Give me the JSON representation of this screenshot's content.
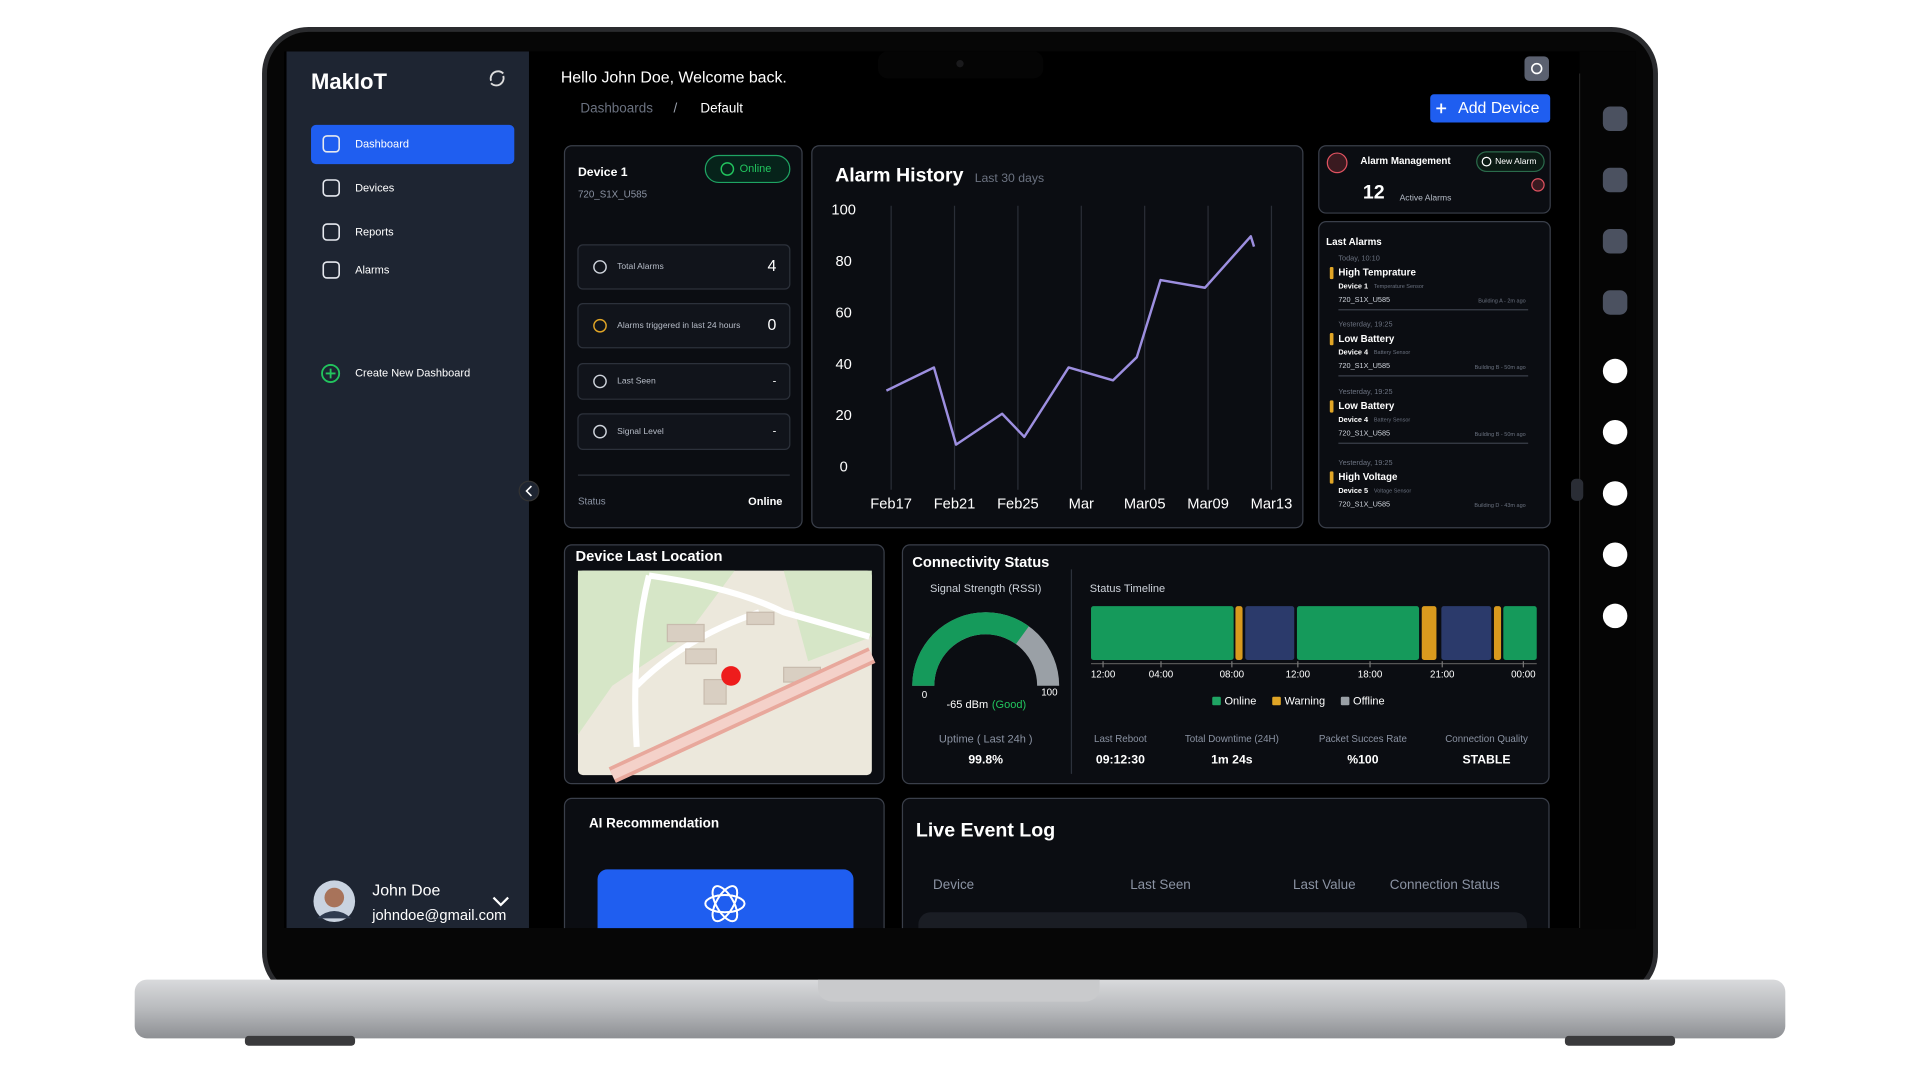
{
  "app": {
    "name": "MakIoT"
  },
  "nav": {
    "items": [
      "Dashboard",
      "Devices",
      "Reports",
      "Alarms"
    ],
    "create": "Create New Dashboard"
  },
  "user": {
    "name": "John Doe",
    "email": "johndoe@gmail.com"
  },
  "header": {
    "greeting": "Hello John Doe, Welcome back.",
    "breadcrumb": [
      "Dashboards",
      "Default"
    ],
    "separator": "/",
    "add_device": "Add Device"
  },
  "device": {
    "name": "Device 1",
    "id": "720_S1X_U585",
    "badge": "Online",
    "metrics": [
      {
        "label": "Total Alarms",
        "value": 4
      },
      {
        "label": "Alarms triggered in last 24 hours",
        "value": 0
      },
      {
        "label": "Last Seen",
        "value": "-"
      },
      {
        "label": "Signal Level",
        "value": "-"
      }
    ],
    "status_label": "Status",
    "status_value": "Online"
  },
  "chart_data": {
    "type": "line",
    "title": "Alarm History",
    "subtitle": "Last 30 days",
    "x": [
      -0.3,
      2.7,
      4.1,
      7,
      8.4,
      11.2,
      14,
      15.5,
      17,
      19.8,
      22.7,
      22.9
    ],
    "values": [
      30,
      39,
      9,
      21,
      12,
      39,
      34,
      43,
      73,
      70,
      90,
      86
    ],
    "color": "#9d8fe0",
    "xlim": [
      -0.6,
      24.9
    ],
    "xticks": [
      {
        "value": 0,
        "label": "Feb17"
      },
      {
        "value": 4,
        "label": "Feb21"
      },
      {
        "value": 8,
        "label": "Feb25"
      },
      {
        "value": 12,
        "label": "Mar"
      },
      {
        "value": 16,
        "label": "Mar05"
      },
      {
        "value": 20,
        "label": "Mar09"
      },
      {
        "value": 24,
        "label": "Mar13"
      }
    ],
    "ylim": [
      0,
      100
    ],
    "yticks": [
      0,
      20,
      40,
      60,
      80,
      100
    ],
    "grid": true
  },
  "alarm_management": {
    "title": "Alarm Management",
    "new_alarm": "New Alarm",
    "count": 12,
    "count_label": "Active Alarms"
  },
  "last_alarms": {
    "title": "Last Alarms",
    "items": [
      {
        "time": "Today, 10:10",
        "title": "High Temprature",
        "device": "Device 1",
        "sensor": "Temperature Sensor",
        "id": "720_S1X_U585",
        "meta": "Building A - 2m ago"
      },
      {
        "time": "Yesterday, 19:25",
        "title": "Low Battery",
        "device": "Device 4",
        "sensor": "Battery Sensor",
        "id": "720_S1X_U585",
        "meta": "Building B - 50m ago"
      },
      {
        "time": "Yesterday, 19:25",
        "title": "Low Battery",
        "device": "Device 4",
        "sensor": "Battery Sensor",
        "id": "720_S1X_U585",
        "meta": "Building B - 50m ago"
      },
      {
        "time": "Yesterday, 19:25",
        "title": "High Voltage",
        "device": "Device 5",
        "sensor": "Voltage Sensor",
        "id": "720_S1X_U585",
        "meta": "Building D - 43m ago"
      }
    ]
  },
  "location": {
    "title": "Device Last Location"
  },
  "connectivity": {
    "title": "Connectivity Status",
    "signal": {
      "title": "Signal Strength (RSSI)",
      "min": 0,
      "max": 100,
      "level": 70,
      "reading": "-65 dBm",
      "quality": "(Good)"
    },
    "uptime": {
      "label": "Uptime ( Last 24h )",
      "value": "99.8%"
    },
    "timeline": {
      "title": "Status Timeline",
      "ticks": [
        {
          "value": 2.7,
          "label": "12:00"
        },
        {
          "value": 15.7,
          "label": "04:00"
        },
        {
          "value": 31.6,
          "label": "08:00"
        },
        {
          "value": 46.4,
          "label": "12:00"
        },
        {
          "value": 62.6,
          "label": "18:00"
        },
        {
          "value": 78.8,
          "label": "21:00"
        },
        {
          "value": 97,
          "label": "00:00"
        }
      ],
      "legend": [
        {
          "name": "Online",
          "color": "#1fa463",
          "bar_color": "#159a5b"
        },
        {
          "name": "Warning",
          "color": "#e0a526",
          "bar_color": "#d99a1e"
        },
        {
          "name": "Offline",
          "color": "#9aa0a6",
          "bar_color": "#2b3a6b"
        }
      ],
      "segments": [
        {
          "status": 0,
          "start": 0,
          "end": 32
        },
        {
          "status": 1,
          "start": 32.4,
          "end": 34
        },
        {
          "status": 2,
          "start": 34.6,
          "end": 45.6
        },
        {
          "status": 0,
          "start": 46.2,
          "end": 73.6
        },
        {
          "status": 1,
          "start": 74.2,
          "end": 77.5
        },
        {
          "status": 2,
          "start": 78.6,
          "end": 89.8
        },
        {
          "status": 1,
          "start": 90.4,
          "end": 92
        },
        {
          "status": 0,
          "start": 92.5,
          "end": 100
        }
      ]
    },
    "stats": [
      {
        "label": "Last Reboot",
        "value": "09:12:30"
      },
      {
        "label": "Total Downtime (24H)",
        "value": "1m 24s"
      },
      {
        "label": "Packet Succes Rate",
        "value": "%100"
      },
      {
        "label": "Connection Quality",
        "value": "STABLE"
      }
    ]
  },
  "ai": {
    "title": "AI Recommendation"
  },
  "event_log": {
    "title": "Live Event Log",
    "columns": [
      "Device",
      "Last Seen",
      "Last Value",
      "Connection Status"
    ]
  }
}
